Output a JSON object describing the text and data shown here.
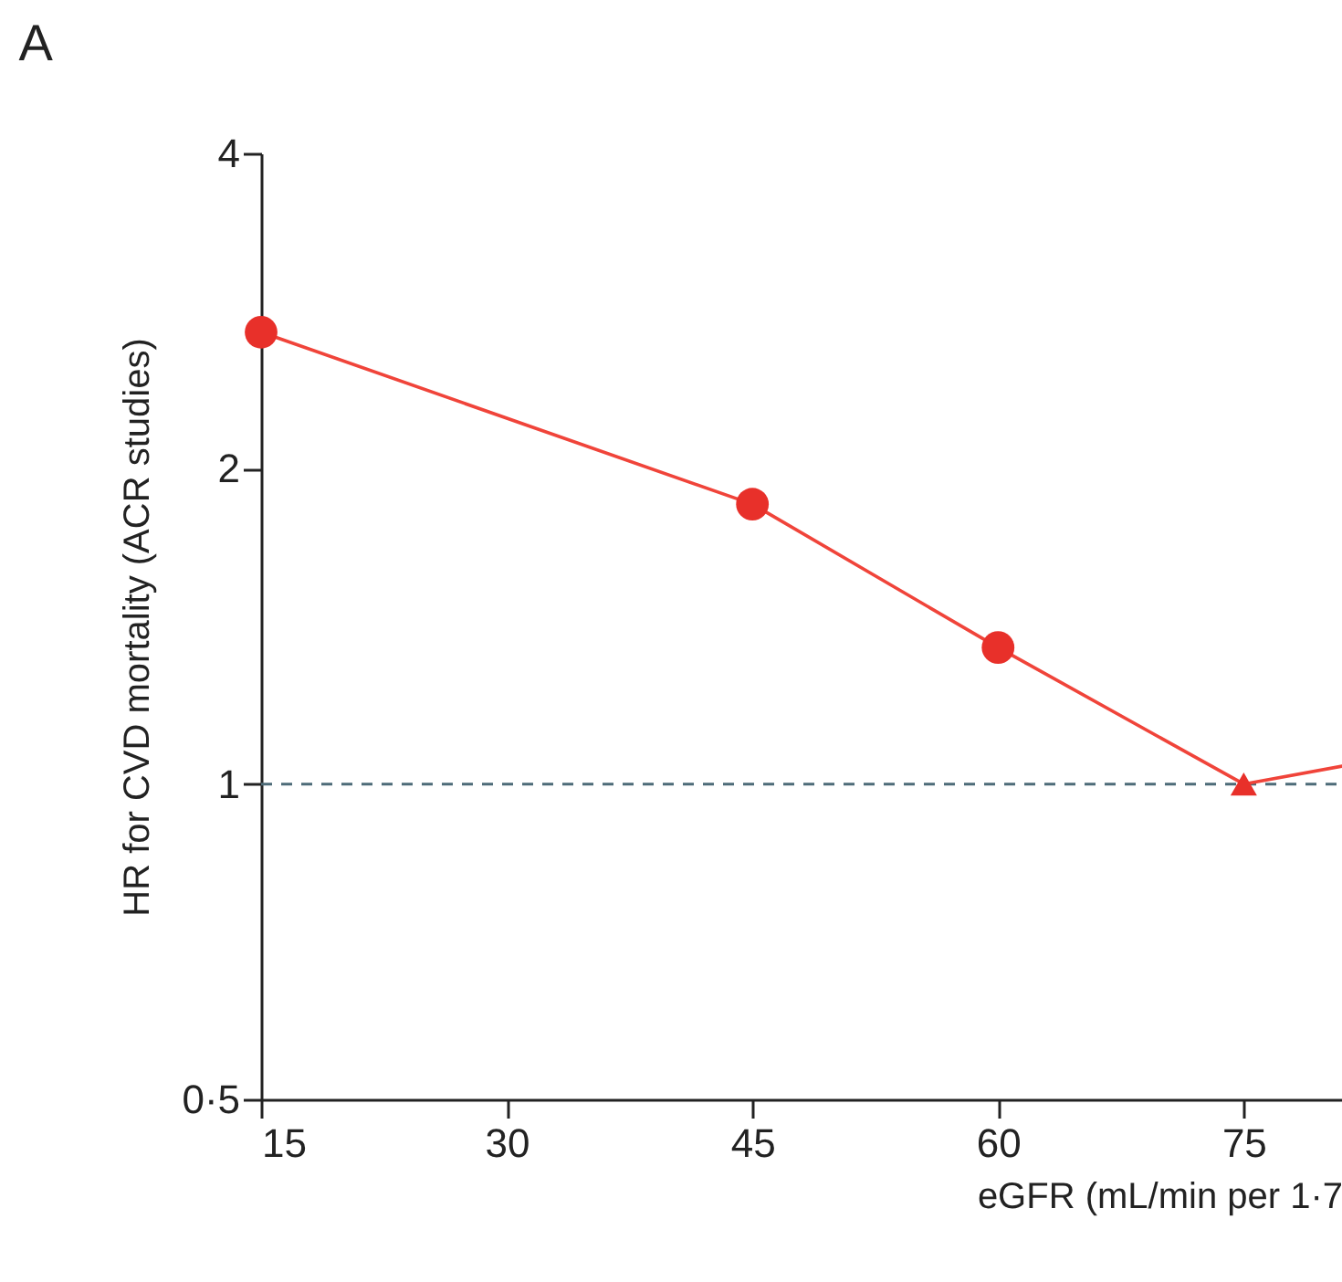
{
  "chart_data": {
    "type": "line",
    "title": "A",
    "xlabel": "eGFR (mL/min per 1·7",
    "ylabel": "HR for CVD mortality (ACR studies)",
    "log": "y",
    "xlim": [
      15,
      81
    ],
    "xticks": [
      15,
      30,
      45,
      60,
      75
    ],
    "ylim": [
      0.5,
      4
    ],
    "yticks": [
      {
        "value": 0.5,
        "label": "0·5"
      },
      1,
      2,
      4
    ],
    "grid": false,
    "series": [
      {
        "color": "#f0443a",
        "marker": "none",
        "line_style": "solid",
        "x": [
          15,
          45,
          60,
          75,
          81
        ],
        "values": [
          2.7,
          1.85,
          1.35,
          1.0,
          1.04
        ]
      },
      {
        "type": "scatter",
        "color": "#e8302a",
        "marker": "circle",
        "x": [
          15,
          45,
          60
        ],
        "values": [
          2.7,
          1.85,
          1.35
        ]
      },
      {
        "type": "scatter",
        "color": "#e8302a",
        "marker": "triangle",
        "x": [
          75
        ],
        "values": [
          1.0
        ]
      }
    ],
    "ref_lines": [
      {
        "axis": "y",
        "value": 1,
        "color": "#4d6b78",
        "line_style": "dashed"
      }
    ]
  }
}
